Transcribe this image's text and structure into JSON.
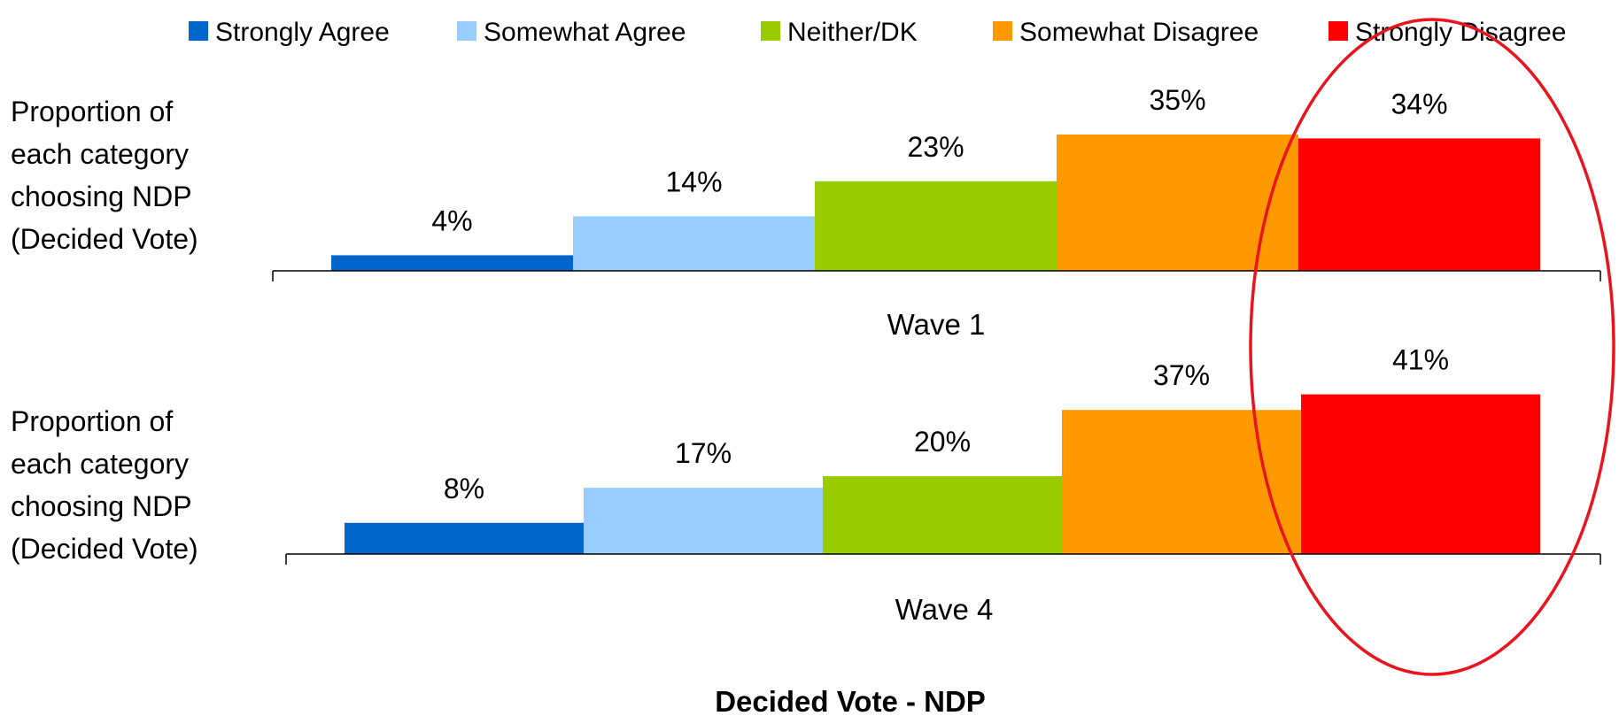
{
  "chart_data": {
    "type": "bar",
    "title": "Decided Vote - NDP",
    "ylabel": "Proportion of each category choosing NDP (Decided Vote)",
    "ylabel_lines": [
      "Proportion of",
      "each category",
      "choosing NDP",
      "(Decided Vote)"
    ],
    "categories": [
      "Strongly Agree",
      "Somewhat Agree",
      "Neither/DK",
      "Somewhat Disagree",
      "Strongly Disagree"
    ],
    "colors": [
      "#0066cc",
      "#99ccff",
      "#99cc00",
      "#ff9900",
      "#ff0000"
    ],
    "legend_position": "top",
    "grid": false,
    "panels": [
      {
        "name": "Wave 1",
        "values": [
          4,
          14,
          23,
          35,
          34
        ],
        "labels": [
          "4%",
          "14%",
          "23%",
          "35%",
          "34%"
        ]
      },
      {
        "name": "Wave 4",
        "values": [
          8,
          17,
          20,
          37,
          41
        ],
        "labels": [
          "8%",
          "17%",
          "20%",
          "37%",
          "41%"
        ]
      }
    ],
    "annotation": {
      "shape": "ellipse",
      "color": "#e8141e",
      "highlights": "Strongly Disagree"
    }
  }
}
